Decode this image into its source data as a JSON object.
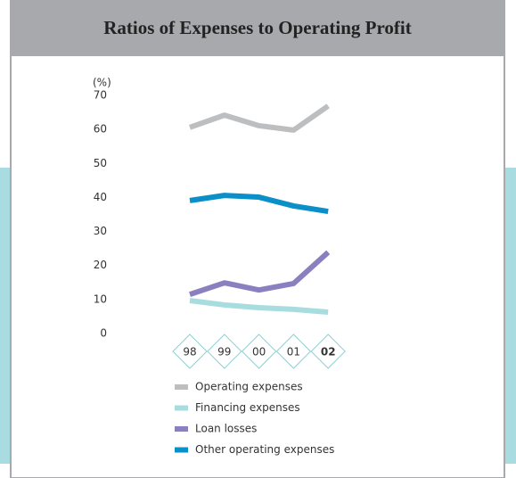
{
  "chart_data": {
    "type": "line",
    "title": "Ratios of Expenses to Operating Profit",
    "y_label": "(%)",
    "categories": [
      "98",
      "99",
      "00",
      "01",
      "02"
    ],
    "series": [
      {
        "name": "Operating expenses",
        "color": "#bcbec0",
        "values": [
          60.6,
          64.2,
          61.1,
          59.8,
          66.9
        ]
      },
      {
        "name": "Financing expenses",
        "color": "#a8dde0",
        "values": [
          9.7,
          8.4,
          7.6,
          7.1,
          6.3
        ]
      },
      {
        "name": "Loan losses",
        "color": "#8b80bf",
        "values": [
          11.5,
          14.9,
          12.8,
          14.7,
          23.9
        ]
      },
      {
        "name": "Other operating expenses",
        "color": "#0a8fc9",
        "values": [
          39.1,
          40.6,
          40.1,
          37.5,
          35.9
        ]
      }
    ],
    "ylim": [
      0,
      70
    ],
    "yticks": [
      0,
      10,
      20,
      30,
      40,
      50,
      60,
      70
    ],
    "grid": false
  }
}
